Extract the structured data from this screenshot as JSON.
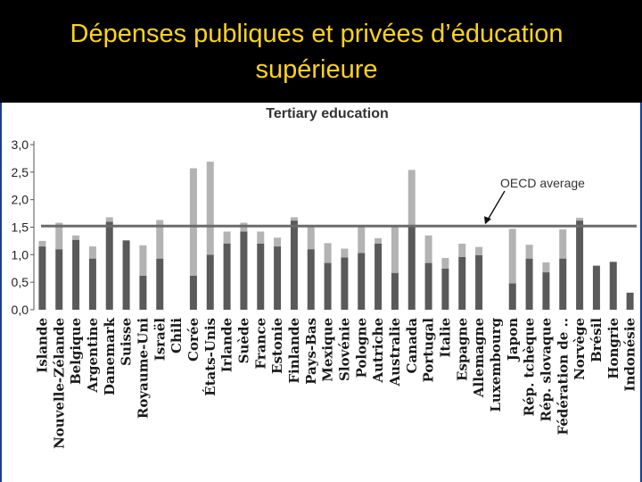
{
  "slide": {
    "title_line1": "Dépenses publiques et privées d’éducation",
    "title_line2": "supérieure"
  },
  "colors": {
    "title": "#ffd21f",
    "background": "#000000",
    "public_bar": "#5a5a5a",
    "private_bar": "#b3b3b3",
    "average_line": "#6b6b6b"
  },
  "chart_data": {
    "type": "bar",
    "stacked": true,
    "title": "Tertiary education",
    "ylim": [
      0,
      3.0
    ],
    "yticks": [
      "3,0",
      "2,5",
      "2,0",
      "1,5",
      "1,0",
      "0,5",
      "0,0"
    ],
    "ytick_values": [
      3.0,
      2.5,
      2.0,
      1.5,
      1.0,
      0.5,
      0.0
    ],
    "grid": false,
    "legend": "none",
    "average": {
      "label": "OECD average",
      "value": 1.52
    },
    "categories": [
      "Islande",
      "Nouvelle-Zélande",
      "Belgique",
      "Argentine",
      "Danemark",
      "Suisse",
      "Royaume-Uni",
      "Israël",
      "Chili",
      "Corée",
      "États-Unis",
      "Irlande",
      "Suède",
      "France",
      "Estonie",
      "Finlande",
      "Pays-Bas",
      "Mexique",
      "Slovénie",
      "Pologne",
      "Autriche",
      "Australie",
      "Canada",
      "Portugal",
      "Italie",
      "Espagne",
      "Allemagne",
      "Luxembourg",
      "Japon",
      "Rép. tchèque",
      "Rép. slovaque",
      "Fédération de ..",
      "Norvège",
      "Brésil",
      "Hongrie",
      "Indonésie"
    ],
    "series": [
      {
        "values": [
          1.15,
          1.1,
          1.27,
          0.93,
          1.6,
          1.26,
          0.62,
          0.93,
          0.0,
          0.62,
          1.0,
          1.2,
          1.42,
          1.2,
          1.15,
          1.62,
          1.1,
          0.85,
          0.95,
          1.03,
          1.2,
          0.67,
          1.52,
          0.85,
          0.75,
          0.96,
          0.99,
          0.0,
          0.48,
          0.93,
          0.68,
          0.93,
          1.62,
          0.8,
          0.87,
          0.31
        ]
      },
      {
        "values": [
          0.1,
          0.48,
          0.08,
          0.22,
          0.08,
          0.0,
          0.55,
          0.7,
          0.0,
          1.95,
          1.69,
          0.22,
          0.16,
          0.22,
          0.16,
          0.06,
          0.42,
          0.36,
          0.16,
          0.5,
          0.1,
          0.85,
          1.02,
          0.5,
          0.19,
          0.24,
          0.15,
          0.0,
          0.99,
          0.25,
          0.18,
          0.53,
          0.05,
          0.0,
          0.0,
          0.0
        ]
      }
    ]
  }
}
